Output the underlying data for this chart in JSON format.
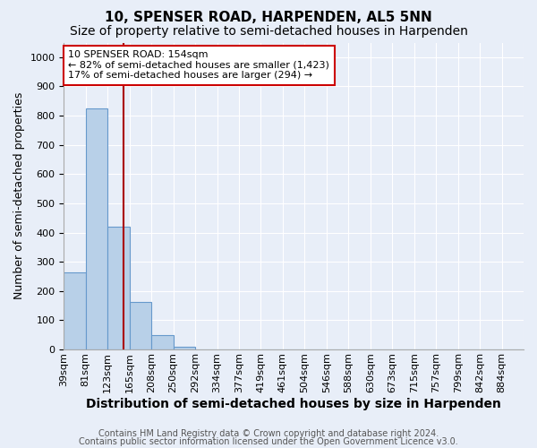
{
  "title1": "10, SPENSER ROAD, HARPENDEN, AL5 5NN",
  "title2": "Size of property relative to semi-detached houses in Harpenden",
  "xlabel": "Distribution of semi-detached houses by size in Harpenden",
  "ylabel": "Number of semi-detached properties",
  "bin_labels": [
    "39sqm",
    "81sqm",
    "123sqm",
    "165sqm",
    "208sqm",
    "250sqm",
    "292sqm",
    "334sqm",
    "377sqm",
    "419sqm",
    "461sqm",
    "504sqm",
    "546sqm",
    "588sqm",
    "630sqm",
    "673sqm",
    "715sqm",
    "757sqm",
    "799sqm",
    "842sqm",
    "884sqm"
  ],
  "bin_edges": [
    0,
    1,
    2,
    3,
    4,
    5,
    6,
    7,
    8,
    9,
    10,
    11,
    12,
    13,
    14,
    15,
    16,
    17,
    18,
    19,
    20,
    21
  ],
  "bar_heights": [
    265,
    825,
    420,
    163,
    50,
    10,
    0,
    0,
    0,
    0,
    0,
    0,
    0,
    0,
    0,
    0,
    0,
    0,
    0,
    0,
    0
  ],
  "bar_color": "#b8d0e8",
  "bar_edge_color": "#6699cc",
  "bg_color": "#e8eef8",
  "grid_color": "#ffffff",
  "vline_bin": 2.71,
  "vline_color": "#aa0000",
  "annotation_line1": "10 SPENSER ROAD: 154sqm",
  "annotation_line2": "← 82% of semi-detached houses are smaller (1,423)",
  "annotation_line3": "17% of semi-detached houses are larger (294) →",
  "annotation_box_color": "#ffffff",
  "annotation_box_edge": "#cc0000",
  "ylim": [
    0,
    1050
  ],
  "yticks": [
    0,
    100,
    200,
    300,
    400,
    500,
    600,
    700,
    800,
    900,
    1000
  ],
  "footer1": "Contains HM Land Registry data © Crown copyright and database right 2024.",
  "footer2": "Contains public sector information licensed under the Open Government Licence v3.0.",
  "title1_fontsize": 11,
  "title2_fontsize": 10,
  "xlabel_fontsize": 10,
  "ylabel_fontsize": 9,
  "tick_fontsize": 8,
  "annotation_fontsize": 8,
  "footer_fontsize": 7
}
